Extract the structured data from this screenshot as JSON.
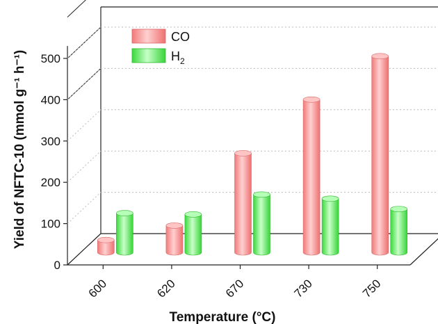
{
  "chart_data": {
    "type": "bar",
    "categories": [
      "600",
      "620",
      "670",
      "730",
      "750"
    ],
    "series": [
      {
        "name": "CO",
        "values": [
          30,
          65,
          240,
          370,
          475
        ]
      },
      {
        "name": "H2",
        "values": [
          95,
          92,
          140,
          130,
          105
        ]
      }
    ],
    "xlabel": "Temperature (°C)",
    "ylabel": "Yield of NFTC-10 (mmol g⁻¹ h⁻¹)",
    "ylim": [
      0,
      500
    ],
    "yticks": [
      "0",
      "100",
      "200",
      "300",
      "400",
      "500"
    ],
    "grid": true,
    "legend_position": "top-left",
    "colors": {
      "CO": "#f08080",
      "H2": "#44e244"
    }
  }
}
